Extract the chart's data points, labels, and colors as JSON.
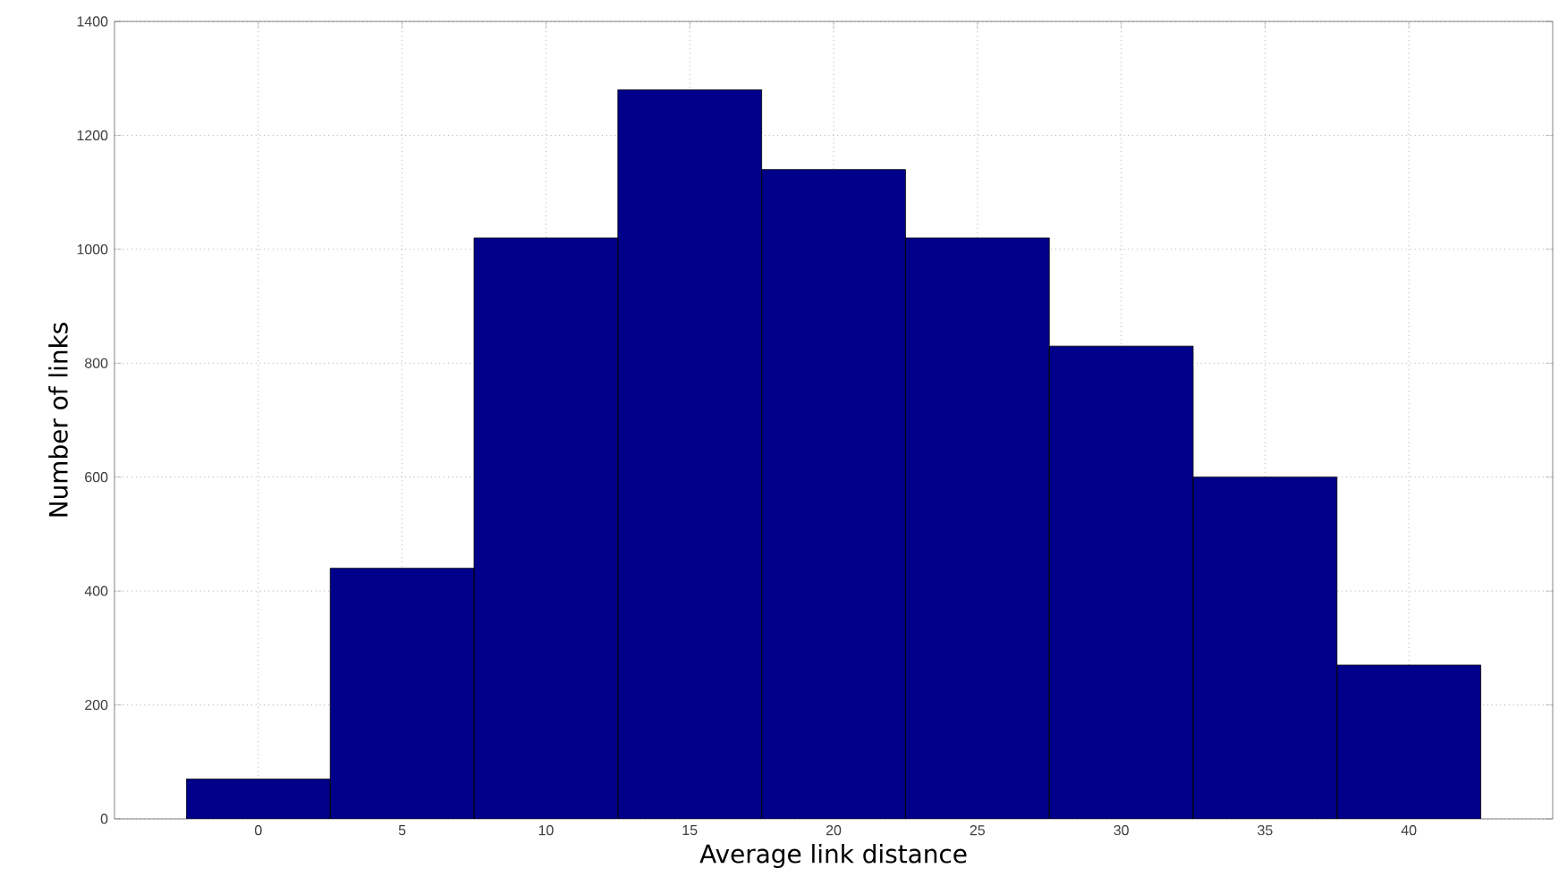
{
  "chart_data": {
    "type": "histogram",
    "xlabel": "Average link distance",
    "ylabel": "Number of links",
    "bins": [
      -2.5,
      2.5,
      7.5,
      12.5,
      17.5,
      22.5,
      27.5,
      32.5,
      37.5,
      42.5
    ],
    "values": [
      70,
      440,
      1020,
      1280,
      1140,
      1020,
      830,
      600,
      270
    ],
    "color": "#00008b",
    "xlim": [
      -5,
      45
    ],
    "xticks": [
      0,
      5,
      10,
      15,
      20,
      25,
      30,
      35,
      40
    ],
    "ylim": [
      0,
      1400
    ],
    "yticks": [
      0,
      200,
      400,
      600,
      800,
      1000,
      1200,
      1400
    ],
    "grid": true
  }
}
